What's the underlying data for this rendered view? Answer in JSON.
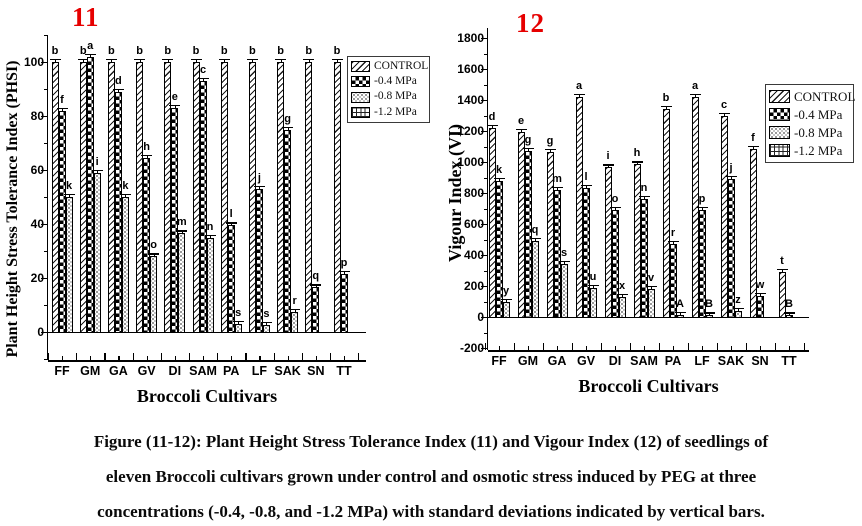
{
  "colors": {
    "panel_number_red": "#e60000",
    "ink": "#000000"
  },
  "figure": {
    "caption_lines": [
      "Figure (11-12): Plant Height Stress Tolerance Index (11) and Vigour Index (12) of seedlings of",
      "eleven Broccoli cultivars grown under control and osmotic stress induced by PEG at three",
      "concentrations (-0.4, -0.8, and -1.2 MPa) with standard deviations indicated by vertical bars."
    ]
  },
  "chart_data": [
    {
      "type": "bar",
      "panel_label": "11",
      "ylabel": "Plant Height Stress Tolerance Index (PHSI)",
      "xlabel": "Broccoli Cultivars",
      "categories": [
        "FF",
        "GM",
        "GA",
        "GV",
        "DI",
        "SAM",
        "PA",
        "LF",
        "SAK",
        "SN",
        "TT"
      ],
      "ylim": [
        -12,
        110
      ],
      "yticks": [
        0,
        20,
        40,
        60,
        80,
        100
      ],
      "ytick_minor_step": 10,
      "grid": false,
      "legend_position": "top-right",
      "legend_labels": [
        "CONTROL",
        "-0.4 MPa",
        "-0.8 MPa",
        "-1.2 MPa"
      ],
      "series": [
        {
          "name": "CONTROL",
          "pattern": "hatch",
          "values": [
            100,
            100,
            100,
            100,
            100,
            100,
            100,
            100,
            100,
            100,
            100
          ],
          "labels": [
            "b",
            "b",
            "b",
            "b",
            "b",
            "b",
            "b",
            "b",
            "b",
            "b",
            "b"
          ]
        },
        {
          "name": "-0.4 MPa",
          "pattern": "checker",
          "values": [
            82,
            102,
            89,
            64.5,
            83,
            93,
            39.5,
            53,
            75,
            16.5,
            21.5
          ],
          "labels": [
            "f",
            "a",
            "d",
            "h",
            "e",
            "c",
            "l",
            "j",
            "g",
            "q",
            "p"
          ]
        },
        {
          "name": "-0.8 MPa",
          "pattern": "dots",
          "values": [
            50,
            59,
            50,
            28,
            36.5,
            35,
            3,
            2.5,
            7.5,
            0,
            0
          ],
          "labels": [
            "k",
            "i",
            "k",
            "o",
            "m",
            "n",
            "s",
            "s",
            "r",
            "",
            ""
          ]
        },
        {
          "name": "-1.2 MPa",
          "pattern": "grid",
          "values": [
            0,
            0,
            0,
            0,
            0,
            0,
            0,
            0,
            0,
            0,
            0
          ],
          "labels": [
            "",
            "",
            "",
            "",
            "",
            "",
            "",
            "",
            "",
            "",
            ""
          ]
        }
      ]
    },
    {
      "type": "bar",
      "panel_label": "12",
      "ylabel": "Vigour Index (VI)",
      "xlabel": "Broccoli Cultivars",
      "categories": [
        "FF",
        "GM",
        "GA",
        "GV",
        "DI",
        "SAM",
        "PA",
        "LF",
        "SAK",
        "SN",
        "TT"
      ],
      "ylim": [
        -220,
        1852
      ],
      "yticks": [
        -200,
        0,
        200,
        400,
        600,
        800,
        1000,
        1200,
        1400,
        1600,
        1800
      ],
      "ytick_minor_step": 100,
      "grid": false,
      "legend_position": "top-right",
      "legend_labels": [
        "CONTROL",
        "-0.4 MPa",
        "-0.8 MPa",
        "-1.2 MPa"
      ],
      "series": [
        {
          "name": "CONTROL",
          "pattern": "hatch",
          "values": [
            1220,
            1195,
            1065,
            1420,
            965,
            985,
            1340,
            1420,
            1300,
            1085,
            290
          ],
          "labels": [
            "d",
            "e",
            "g",
            "a",
            "i",
            "h",
            "b",
            "a",
            "c",
            "f",
            "t"
          ]
        },
        {
          "name": "-0.4 MPa",
          "pattern": "checker",
          "values": [
            880,
            1070,
            820,
            835,
            690,
            760,
            470,
            690,
            890,
            135,
            10
          ],
          "labels": [
            "k",
            "g",
            "m",
            "l",
            "o",
            "n",
            "r",
            "p",
            "j",
            "w",
            "B"
          ]
        },
        {
          "name": "-0.8 MPa",
          "pattern": "dots",
          "values": [
            95,
            490,
            345,
            190,
            130,
            180,
            15,
            10,
            40,
            0,
            0
          ],
          "labels": [
            "y",
            "q",
            "s",
            "u",
            "x",
            "v",
            "A",
            "B",
            "z",
            "",
            ""
          ]
        },
        {
          "name": "-1.2 MPa",
          "pattern": "grid",
          "values": [
            0,
            0,
            0,
            0,
            0,
            0,
            0,
            0,
            0,
            0,
            0
          ],
          "labels": [
            "",
            "",
            "",
            "",
            "",
            "",
            "",
            "",
            "",
            "",
            ""
          ]
        }
      ]
    }
  ]
}
